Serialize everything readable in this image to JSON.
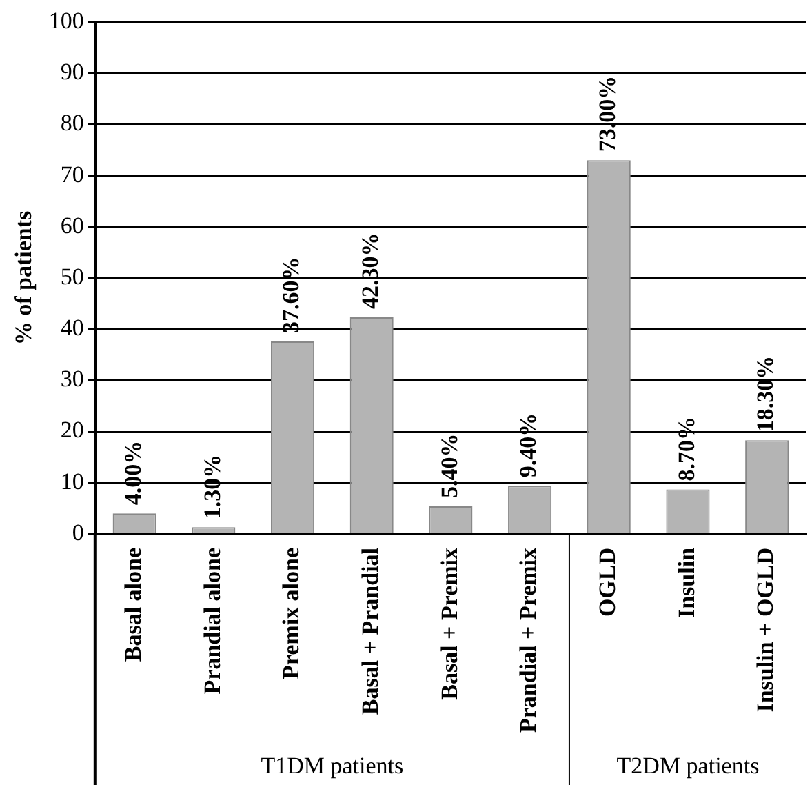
{
  "chart_data": {
    "type": "bar",
    "ylabel": "% of patients",
    "categories": [
      "Basal alone",
      "Prandial alone",
      "Premix alone",
      "Basal + Prandial",
      "Basal + Premix",
      "Prandial + Premix",
      "OGLD",
      "Insulin",
      "Insulin + OGLD"
    ],
    "values": [
      4,
      1.3,
      37.6,
      42.3,
      5.4,
      9.4,
      73,
      8.7,
      18.3
    ],
    "value_labels": [
      "4.00%",
      "1.30%",
      "37.60%",
      "42.30%",
      "5.40%",
      "9.40%",
      "73.00%",
      "8.70%",
      "18.30%"
    ],
    "color": "#b4b4b4",
    "ylim": [
      0,
      100
    ],
    "yticks": [
      0,
      10,
      20,
      30,
      40,
      50,
      60,
      70,
      80,
      90,
      100
    ],
    "grid": "y",
    "annotations": [
      "T1DM patients",
      "T2DM patients"
    ]
  }
}
